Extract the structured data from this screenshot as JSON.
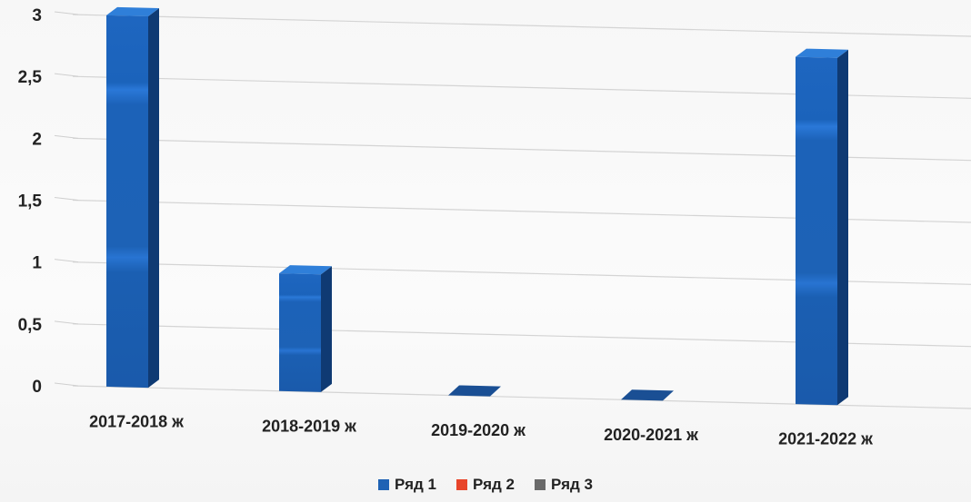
{
  "chart_data": {
    "type": "bar",
    "categories": [
      "2017-2018 ж",
      "2018-2019 ж",
      "2019-2020 ж",
      "2020-2021 ж",
      "2021-2022 ж"
    ],
    "series": [
      {
        "name": "Ряд 1",
        "color": "#1f62b4",
        "values": [
          3,
          0.95,
          0,
          0,
          2.8
        ]
      },
      {
        "name": "Ряд 2",
        "color": "#e8452a",
        "values": [
          0,
          0,
          0,
          0,
          0
        ]
      },
      {
        "name": "Ряд 3",
        "color": "#6a6a6a",
        "values": [
          0,
          0,
          0,
          0,
          0
        ]
      }
    ],
    "y_ticks": [
      "0",
      "0,5",
      "1",
      "1,5",
      "2",
      "2,5",
      "3"
    ],
    "ylim": [
      0,
      3
    ],
    "grid": true,
    "legend_position": "bottom"
  }
}
